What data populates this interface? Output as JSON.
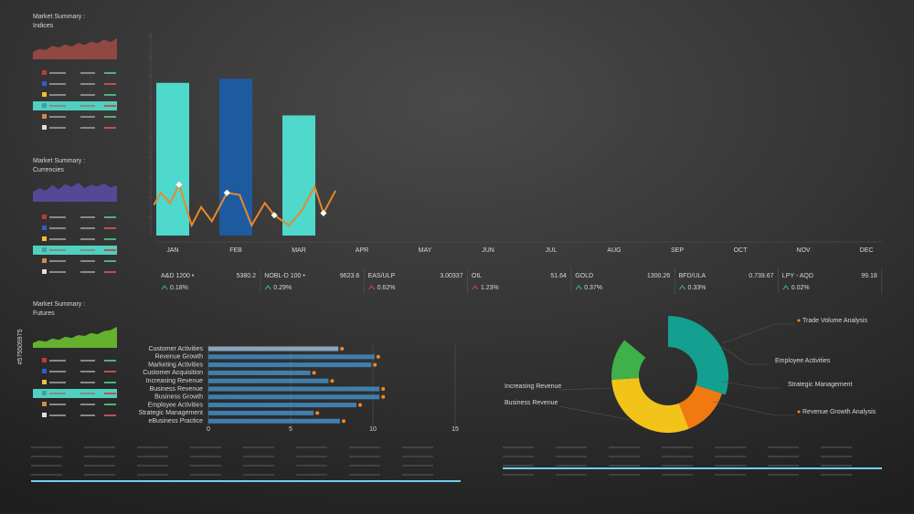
{
  "sidebar": [
    {
      "title": "Market Summary :",
      "subtitle": "Indices"
    },
    {
      "title": "Market Summary :",
      "subtitle": "Currencies"
    },
    {
      "title": "Market Summary :",
      "subtitle": "Futures"
    }
  ],
  "watermark": "#575505975",
  "tickers": [
    {
      "name": "A&D 1200 •",
      "value": "5380.2",
      "change": "0.18%",
      "color": "#3fbf8f"
    },
    {
      "name": "NOBL-D 100 •",
      "value": "9623.6",
      "change": "0.29%",
      "color": "#3fbf8f"
    },
    {
      "name": "EAS/ULP",
      "value": "3.00337",
      "change": "0.62%",
      "color": "#e04848"
    },
    {
      "name": "OIL",
      "value": "51.64",
      "change": "1.23%",
      "color": "#e04848"
    },
    {
      "name": "GOLD",
      "value": "1300.26",
      "change": "0.37%",
      "color": "#3fbf8f"
    },
    {
      "name": "BFD/ULA",
      "value": "0.739.67",
      "change": "0.33%",
      "color": "#3fbf8f"
    },
    {
      "name": "LPY - AQD",
      "value": "99.18",
      "change": "0.02%",
      "color": "#3fbf8f"
    }
  ],
  "chart_data": [
    {
      "type": "bar",
      "categories": [
        "JAN",
        "FEB",
        "MAR",
        "APR",
        "MAY",
        "JUN",
        "JUL",
        "AUG",
        "SEP",
        "OCT",
        "NOV",
        "DEC"
      ],
      "values": [
        75,
        77,
        59,
        null,
        null,
        null,
        null,
        null,
        null,
        null,
        null,
        null
      ],
      "colors": [
        "#4fd8cc",
        "#1e5aa0",
        "#4fd8cc"
      ],
      "ylim": [
        0,
        100
      ]
    },
    {
      "type": "line",
      "x": [
        -0.3,
        -0.19,
        -0.04,
        0.1,
        0.3,
        0.45,
        0.62,
        0.86,
        1.06,
        1.25,
        1.46,
        1.61,
        1.84,
        2.04,
        2.25,
        2.39,
        2.58
      ],
      "values": [
        15,
        21,
        16,
        25,
        5,
        14,
        7,
        21,
        20,
        5,
        16,
        10,
        5,
        12,
        24,
        11,
        22
      ],
      "color": "#e8892b",
      "xlim": [
        -0.5,
        11.5
      ],
      "ylim": [
        0,
        100
      ]
    },
    {
      "type": "hbar",
      "categories": [
        "Customer Activities",
        "Revenue Growth",
        "Marketing Activities",
        "Customer Acquisition",
        "Increasing Revenue",
        "Business Revenue",
        "Business Growth",
        "Employee Activities",
        "Strategic Management",
        "eBusiness Practice"
      ],
      "values": [
        7.9,
        10.1,
        9.9,
        6.2,
        7.3,
        10.4,
        10.4,
        9.0,
        6.4,
        8.0
      ],
      "colors": [
        "#8aa6bd",
        "#3f7fae"
      ],
      "xlim": [
        0,
        15
      ],
      "xticks": [
        0,
        5,
        10,
        15
      ]
    },
    {
      "type": "donut",
      "values": [
        30,
        14,
        30,
        12
      ],
      "colors": [
        "#14a090",
        "#f07a10",
        "#f2c41a",
        "#3fb04a"
      ],
      "annotations": [
        "Trade Volume Analysis",
        "Employee Activities",
        "Strategic Management",
        "Revenue Growth Analysis",
        "Increasing Revenue",
        "Business Revenue"
      ]
    },
    {
      "type": "area",
      "values": [
        30,
        42,
        38,
        55,
        48,
        60,
        52,
        66,
        58,
        72,
        65,
        80,
        70,
        85
      ],
      "color": "#9a4a44",
      "ylim": [
        0,
        100
      ]
    },
    {
      "type": "area",
      "values": [
        40,
        55,
        45,
        68,
        50,
        72,
        60,
        78,
        55,
        70,
        62,
        75,
        58,
        66
      ],
      "color": "#5a4aa0",
      "ylim": [
        0,
        100
      ]
    },
    {
      "type": "area",
      "values": [
        20,
        30,
        25,
        38,
        32,
        45,
        40,
        52,
        48,
        60,
        55,
        68,
        72,
        85
      ],
      "color": "#6cc030",
      "ylim": [
        0,
        100
      ]
    }
  ]
}
